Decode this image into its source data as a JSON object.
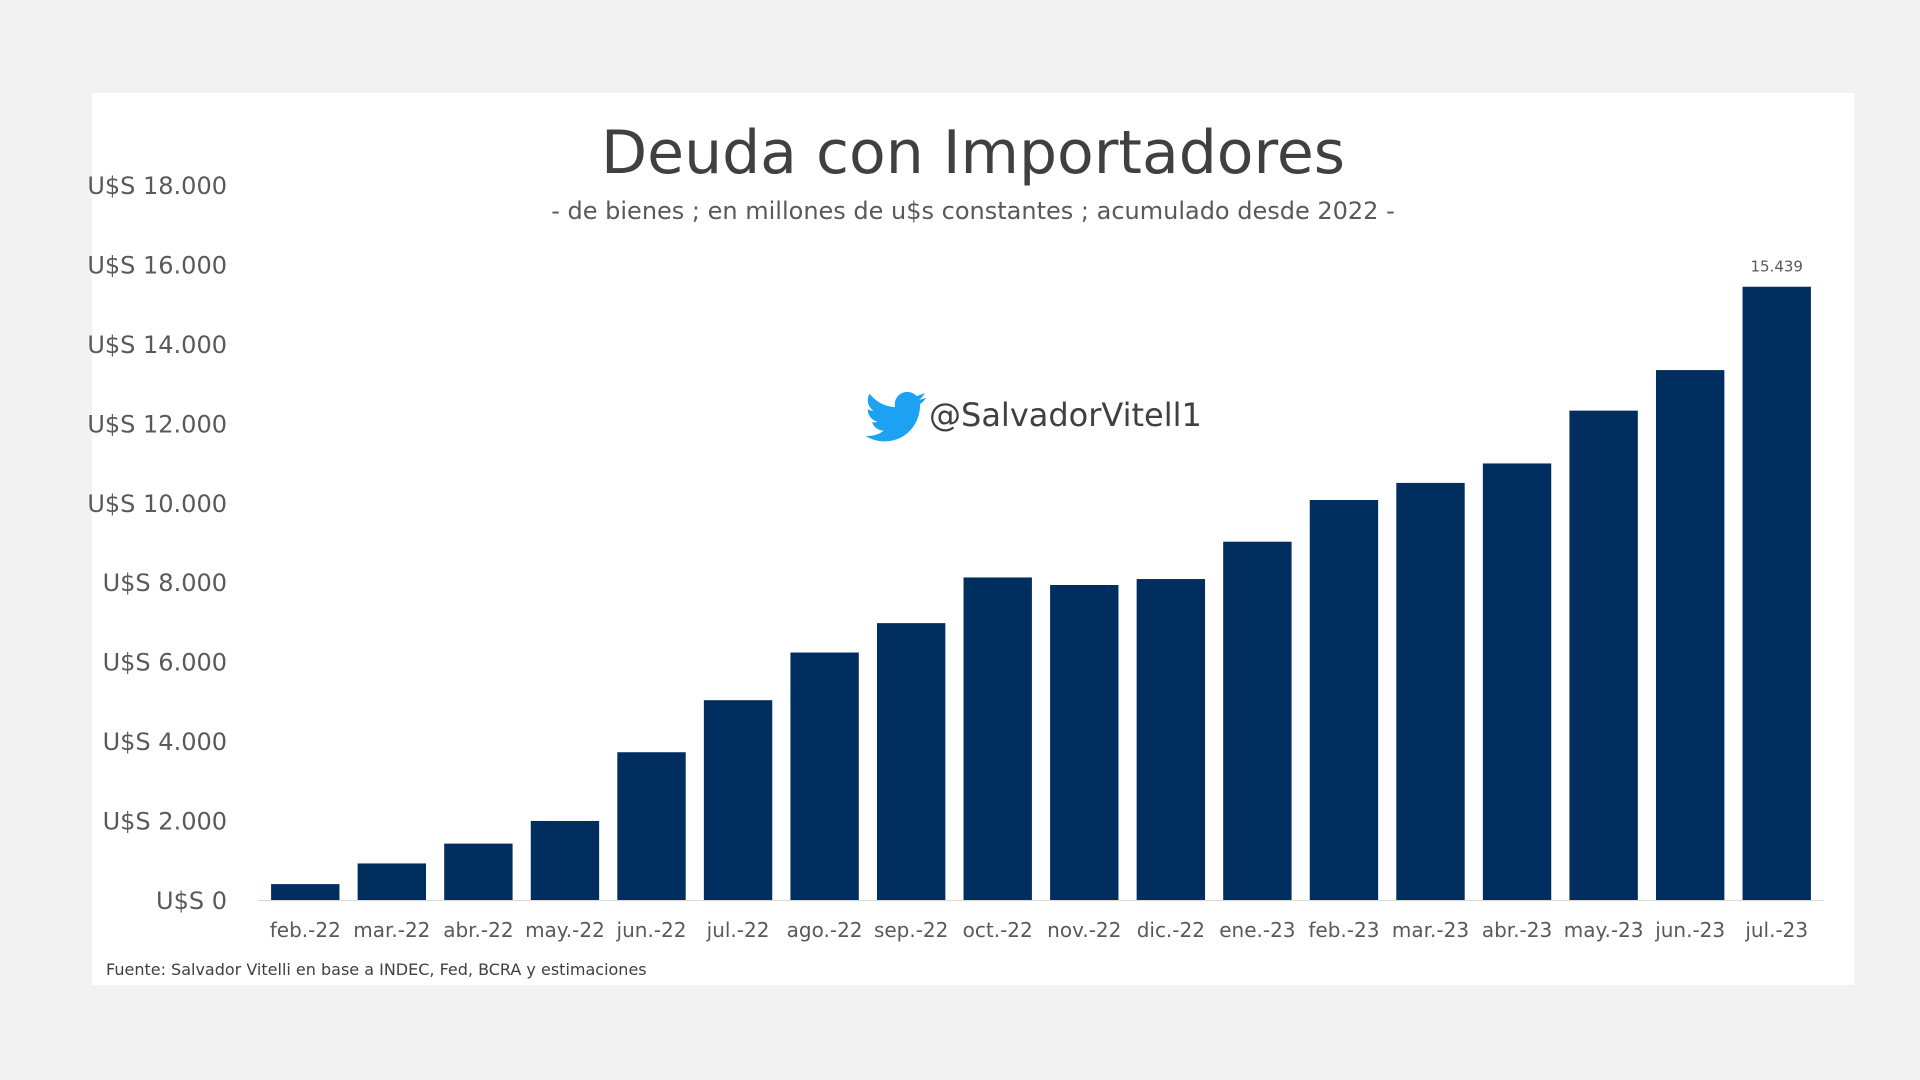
{
  "chart_data": {
    "type": "bar",
    "title": "Deuda con Importadores",
    "subtitle": "- de bienes ; en millones de u$s constantes ; acumulado desde 2022 -",
    "categories": [
      "feb.-22",
      "mar.-22",
      "abr.-22",
      "may.-22",
      "jun.-22",
      "jul.-22",
      "ago.-22",
      "sep.-22",
      "oct.-22",
      "nov.-22",
      "dic.-22",
      "ene.-23",
      "feb.-23",
      "mar.-23",
      "abr.-23",
      "may.-23",
      "jun.-23",
      "jul.-23"
    ],
    "values": [
      400,
      920,
      1420,
      1990,
      3720,
      5030,
      6230,
      6970,
      8120,
      7930,
      8080,
      9020,
      10070,
      10500,
      10990,
      12320,
      13340,
      15439
    ],
    "data_labels": [
      {
        "index": 17,
        "text": "15.439"
      }
    ],
    "ylim": [
      0,
      18000
    ],
    "yticks": [
      {
        "value": 0,
        "label": "U$S 0"
      },
      {
        "value": 2000,
        "label": "U$S 2.000"
      },
      {
        "value": 4000,
        "label": "U$S 4.000"
      },
      {
        "value": 6000,
        "label": "U$S 6.000"
      },
      {
        "value": 8000,
        "label": "U$S 8.000"
      },
      {
        "value": 10000,
        "label": "U$S 10.000"
      },
      {
        "value": 12000,
        "label": "U$S 12.000"
      },
      {
        "value": 14000,
        "label": "U$S 14.000"
      },
      {
        "value": 16000,
        "label": "U$S 16.000"
      },
      {
        "value": 18000,
        "label": "U$S 18.000"
      }
    ],
    "grid": false,
    "bar_color": "#002f5f",
    "source": "Fuente:  Salvador Vitelli en base a INDEC, Fed,  BCRA y estimaciones",
    "watermark": {
      "icon": "twitter-bird-icon",
      "handle": "@SalvadorVitell1",
      "color": "#1da1f2"
    }
  }
}
